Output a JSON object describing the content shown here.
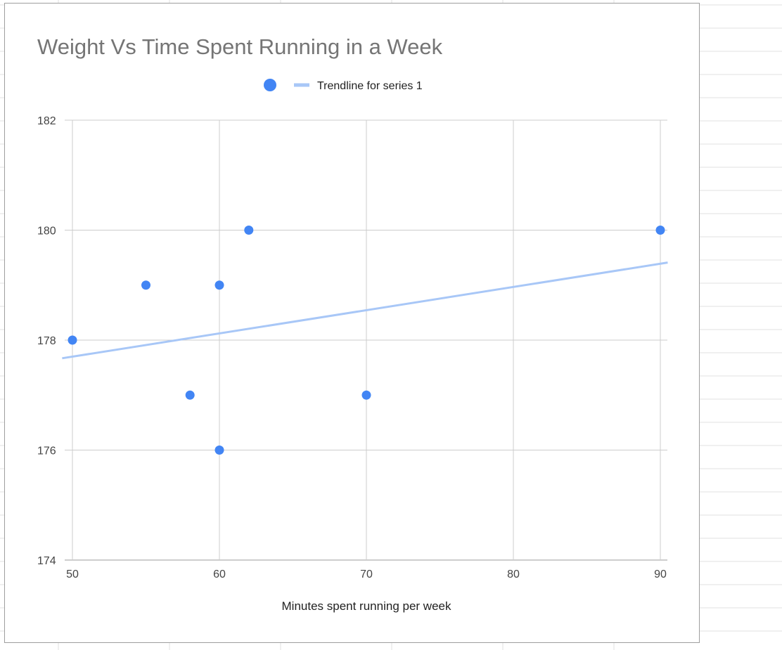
{
  "chart_data": {
    "type": "scatter",
    "title": "Weight Vs Time Spent Running in a Week",
    "xlabel": "Minutes spent running per week",
    "ylabel": "",
    "xlim": [
      50,
      90
    ],
    "ylim": [
      174,
      182
    ],
    "x_ticks": [
      "50",
      "60",
      "70",
      "80",
      "90"
    ],
    "y_ticks": [
      "174",
      "176",
      "178",
      "180",
      "182"
    ],
    "grid": true,
    "legend_position": "top",
    "legend": [
      {
        "type": "marker",
        "label": ""
      },
      {
        "type": "trendline",
        "label": "Trendline for series 1"
      }
    ],
    "series": [
      {
        "points": [
          {
            "x": 50,
            "y": 178
          },
          {
            "x": 55,
            "y": 179
          },
          {
            "x": 58,
            "y": 177
          },
          {
            "x": 60,
            "y": 179
          },
          {
            "x": 60,
            "y": 176
          },
          {
            "x": 62,
            "y": 180
          },
          {
            "x": 70,
            "y": 177
          },
          {
            "x": 90,
            "y": 180
          }
        ],
        "color": "#4285f4"
      }
    ],
    "trendline": {
      "x_from": 49.3,
      "y_from": 177.67,
      "x_to": 90.5,
      "y_to": 179.41,
      "color": "#a8c7f7"
    }
  }
}
